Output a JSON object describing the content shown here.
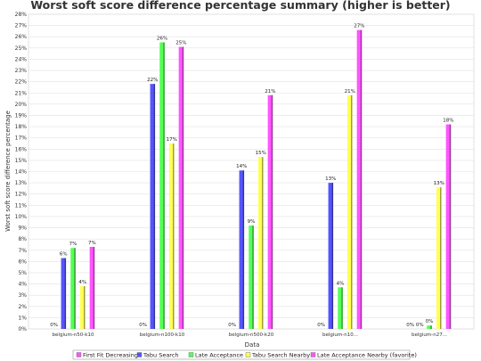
{
  "chart_data": {
    "type": "bar",
    "title": "Worst soft score difference percentage summary (higher is better)",
    "xlabel": "Data",
    "ylabel": "Worst soft score difference percentage",
    "ylim": [
      0,
      28
    ],
    "ytick_step": 1,
    "ytick_suffix": "%",
    "grid": true,
    "legend_position": "bottom",
    "categories": [
      "belgium-n50-k10",
      "belgium-n100-k10",
      "belgium-n500-k20",
      "belgium-n10...",
      "belgium-n27..."
    ],
    "series": [
      {
        "name": "First Fit Decreasing",
        "color": "#ff55ff",
        "values": [
          0,
          0,
          0,
          0,
          0
        ],
        "labels": [
          "0%",
          "0%",
          "0%",
          "0%",
          "0%"
        ]
      },
      {
        "name": "Tabu Search",
        "color": "#5555ff",
        "values": [
          6.3,
          21.8,
          14.1,
          13.0,
          null
        ],
        "labels": [
          "6%",
          "22%",
          "14%",
          "13%",
          "0%"
        ]
      },
      {
        "name": "Late Acceptance",
        "color": "#55ff55",
        "values": [
          7.2,
          25.5,
          9.2,
          3.7,
          0.3
        ],
        "labels": [
          "7%",
          "26%",
          "9%",
          "4%",
          "0%"
        ]
      },
      {
        "name": "Tabu Search Nearby",
        "color": "#ffff55",
        "values": [
          3.8,
          16.5,
          15.3,
          20.8,
          12.6
        ],
        "labels": [
          "4%",
          "17%",
          "15%",
          "21%",
          "13%"
        ]
      },
      {
        "name": "Late Acceptance Nearby (favorite)",
        "color": "#ff55ff",
        "values": [
          7.3,
          25.1,
          20.8,
          26.6,
          18.2
        ],
        "labels": [
          "7%",
          "25%",
          "21%",
          "27%",
          "18%"
        ]
      }
    ]
  }
}
